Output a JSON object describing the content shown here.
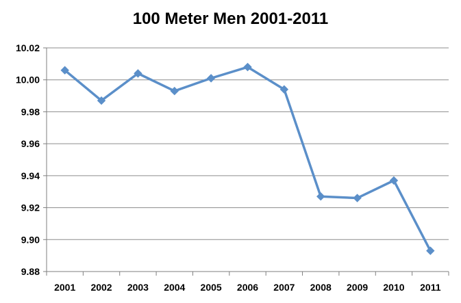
{
  "chart_data": {
    "type": "line",
    "title": "100 Meter Men 2001-2011",
    "xlabel": "",
    "ylabel": "",
    "categories": [
      "2001",
      "2002",
      "2003",
      "2004",
      "2005",
      "2006",
      "2007",
      "2008",
      "2009",
      "2010",
      "2011"
    ],
    "series": [
      {
        "values": [
          10.006,
          9.987,
          10.004,
          9.993,
          10.001,
          10.008,
          9.994,
          9.927,
          9.926,
          9.937,
          9.893
        ]
      }
    ],
    "ylim": [
      9.88,
      10.02
    ],
    "yticks": [
      "9.88",
      "9.90",
      "9.92",
      "9.94",
      "9.96",
      "9.98",
      "10.00",
      "10.02"
    ],
    "grid": true,
    "legend": "none",
    "colors": {
      "series": "#5b8fc9",
      "grid": "#8c8c8c",
      "axis": "#7f7f7f"
    }
  }
}
